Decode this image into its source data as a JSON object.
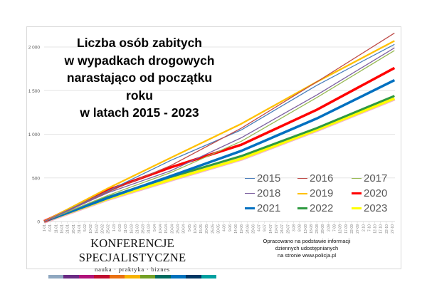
{
  "chart_data": {
    "type": "line",
    "title": "Liczba osób zabitych\nw wypadkach drogowych\nnarastająco od początku roku\nw latach 2015 - 2023",
    "title_lines": [
      "Liczba osób zabitych",
      "w wypadkach drogowych",
      "narastająco od początku roku",
      "w latach 2015 - 2023"
    ],
    "xlabel": "",
    "ylabel": "",
    "ylim": [
      0,
      2250
    ],
    "yticks": [
      0,
      500,
      1000,
      1500,
      2000
    ],
    "ytick_labels": [
      "0",
      "500",
      "1 000",
      "1 500",
      "2 000"
    ],
    "xtick_labels": [
      "1-01",
      "6-01",
      "11-01",
      "16-01",
      "21-01",
      "26-01",
      "31-01",
      "5-02",
      "10-02",
      "15-02",
      "20-02",
      "25-02",
      "1-03",
      "6-03",
      "11-03",
      "16-03",
      "21-03",
      "26-03",
      "31-03",
      "5-04",
      "10-04",
      "15-04",
      "20-04",
      "25-04",
      "30-04",
      "5-05",
      "10-05",
      "15-05",
      "20-05",
      "25-05",
      "30-05",
      "4-06",
      "9-06",
      "14-06",
      "19-06",
      "24-06",
      "29-06",
      "4-07",
      "9-07",
      "14-07",
      "19-07",
      "24-07",
      "29-07",
      "3-08",
      "8-08",
      "13-08",
      "18-08",
      "23-08",
      "28-08",
      "2-09",
      "7-09",
      "12-09",
      "17-09",
      "22-09",
      "27-09",
      "2-10",
      "7-10",
      "12-10",
      "17-10",
      "22-10",
      "27-10"
    ],
    "x_days": [
      0,
      55,
      109,
      170,
      235,
      302
    ],
    "grid": true,
    "legend_placement": "bottom-right",
    "series": [
      {
        "name": "2015",
        "color": "#4a7ebb",
        "width": 1.3,
        "values": [
          0,
          350,
          700,
          1050,
          1560,
          2030
        ]
      },
      {
        "name": "2016",
        "color": "#be4b48",
        "width": 1.3,
        "values": [
          0,
          340,
          640,
          1070,
          1600,
          2160
        ]
      },
      {
        "name": "2017",
        "color": "#98b954",
        "width": 1.3,
        "values": [
          0,
          300,
          560,
          920,
          1420,
          1960
        ]
      },
      {
        "name": "2018",
        "color": "#7d60a0",
        "width": 1.3,
        "values": [
          0,
          330,
          580,
          960,
          1450,
          1990
        ]
      },
      {
        "name": "2019",
        "color": "#ffc000",
        "width": 2.3,
        "values": [
          0,
          380,
          730,
          1120,
          1600,
          2070
        ]
      },
      {
        "name": "2020",
        "color": "#ff0000",
        "width": 3.5,
        "values": [
          0,
          360,
          620,
          880,
          1280,
          1760
        ]
      },
      {
        "name": "2021",
        "color": "#0070c0",
        "width": 3.5,
        "values": [
          0,
          270,
          520,
          810,
          1180,
          1620
        ]
      },
      {
        "name": "2022",
        "color": "#2e9a40",
        "width": 3,
        "values": [
          0,
          280,
          510,
          750,
          1070,
          1440
        ]
      },
      {
        "name": "2023",
        "color": "#ffff00",
        "width": 3.5,
        "values": [
          0,
          260,
          480,
          720,
          1050,
          1410
        ]
      }
    ]
  },
  "brand": {
    "name": "KONFERENCJE SPECJALISTYCZNE",
    "tagline": "nauka · praktyka · biznes",
    "colors": [
      "#8fa7c0",
      "#6a2b84",
      "#b0127a",
      "#c00d2f",
      "#ea7012",
      "#f7b300",
      "#74a025",
      "#006b5f",
      "#0072bd",
      "#003764",
      "#00a0a0"
    ]
  },
  "source": [
    "Opracowano na podstawie informacji",
    "dziennych udostępnianych",
    "na stronie www.policja.pl"
  ]
}
